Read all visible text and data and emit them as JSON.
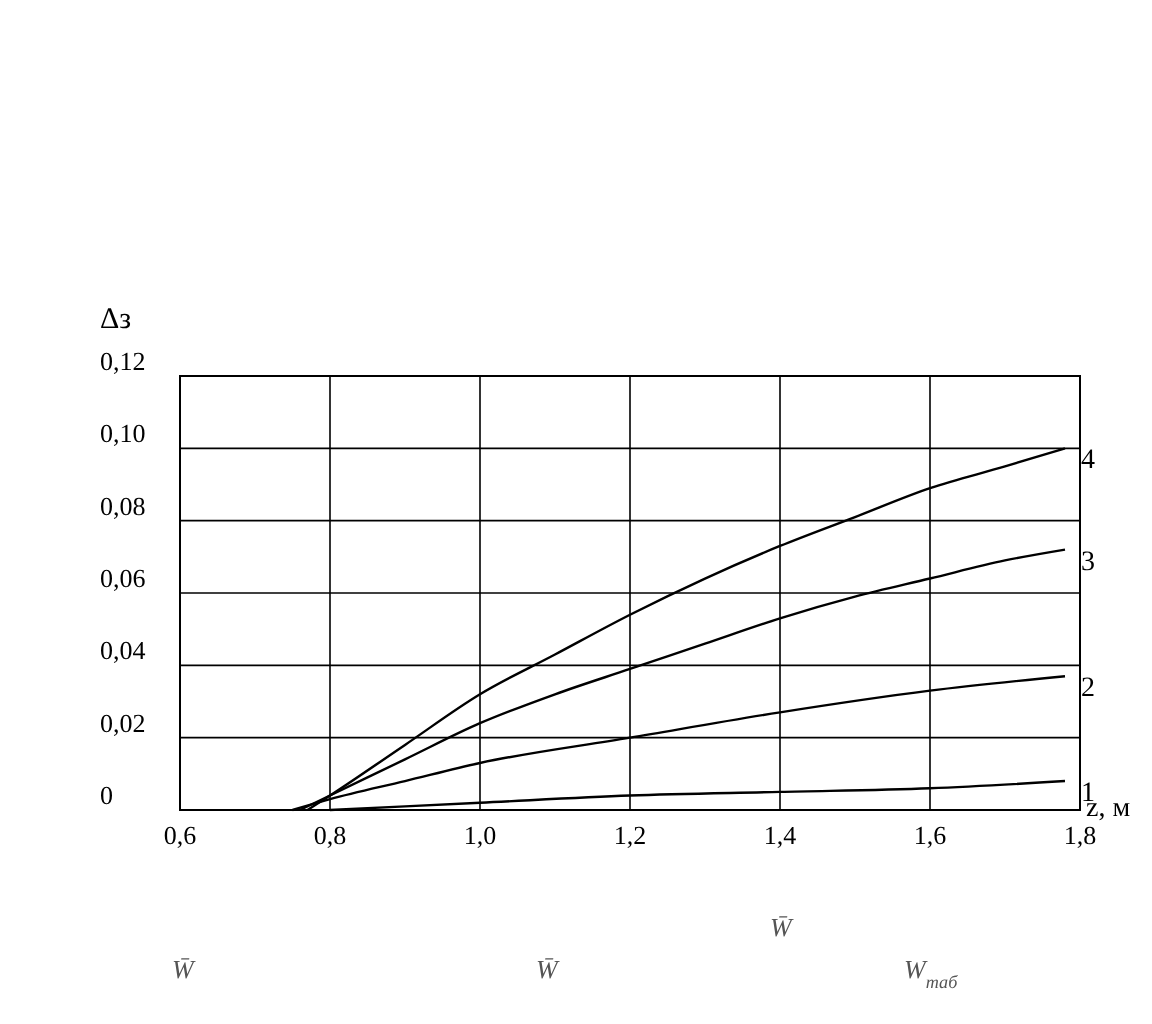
{
  "chart_data": {
    "type": "line",
    "xlabel": "z, м",
    "ylabel": "Δз",
    "xlim": [
      0.6,
      1.8
    ],
    "ylim": [
      0,
      0.12
    ],
    "xticks": [
      {
        "value": 0.6,
        "label": "0,6"
      },
      {
        "value": 0.8,
        "label": "0,8"
      },
      {
        "value": 1.0,
        "label": "1,0"
      },
      {
        "value": 1.2,
        "label": "1,2"
      },
      {
        "value": 1.4,
        "label": "1,4"
      },
      {
        "value": 1.6,
        "label": "1,6"
      },
      {
        "value": 1.8,
        "label": "1,8"
      }
    ],
    "yticks": [
      0,
      {
        "value": 0.02,
        "label": "0,02"
      },
      {
        "value": 0.04,
        "label": "0,04"
      },
      {
        "value": 0.06,
        "label": "0,06"
      },
      {
        "value": 0.08,
        "label": "0,08"
      },
      {
        "value": 0.1,
        "label": "0,10"
      },
      {
        "value": 0.12,
        "label": "0,12"
      }
    ],
    "grid": true,
    "marker": "none",
    "line_style": "solid",
    "series": [
      {
        "name": "1",
        "color": "#000000",
        "x": [
          0.8,
          1.0,
          1.2,
          1.4,
          1.6,
          1.78
        ],
        "values": [
          0,
          0.002,
          0.004,
          0.005,
          0.006,
          0.008
        ]
      },
      {
        "name": "2",
        "color": "#000000",
        "x": [
          0.75,
          0.8,
          0.9,
          1.0,
          1.2,
          1.4,
          1.6,
          1.78
        ],
        "values": [
          0,
          0.003,
          0.008,
          0.013,
          0.02,
          0.027,
          0.033,
          0.037
        ]
      },
      {
        "name": "3",
        "color": "#000000",
        "x": [
          0.76,
          0.8,
          0.9,
          1.0,
          1.1,
          1.2,
          1.3,
          1.4,
          1.5,
          1.6,
          1.7,
          1.78
        ],
        "values": [
          0,
          0.004,
          0.014,
          0.024,
          0.032,
          0.039,
          0.046,
          0.053,
          0.059,
          0.064,
          0.069,
          0.072
        ]
      },
      {
        "name": "4",
        "color": "#000000",
        "x": [
          0.77,
          0.8,
          0.9,
          1.0,
          1.1,
          1.2,
          1.3,
          1.4,
          1.5,
          1.6,
          1.7,
          1.78
        ],
        "values": [
          0,
          0.004,
          0.018,
          0.032,
          0.043,
          0.054,
          0.064,
          0.073,
          0.081,
          0.089,
          0.095,
          0.1
        ]
      }
    ],
    "annotations": [
      "W̄",
      "W̄",
      "W̄",
      "W$_{таб}$"
    ]
  }
}
